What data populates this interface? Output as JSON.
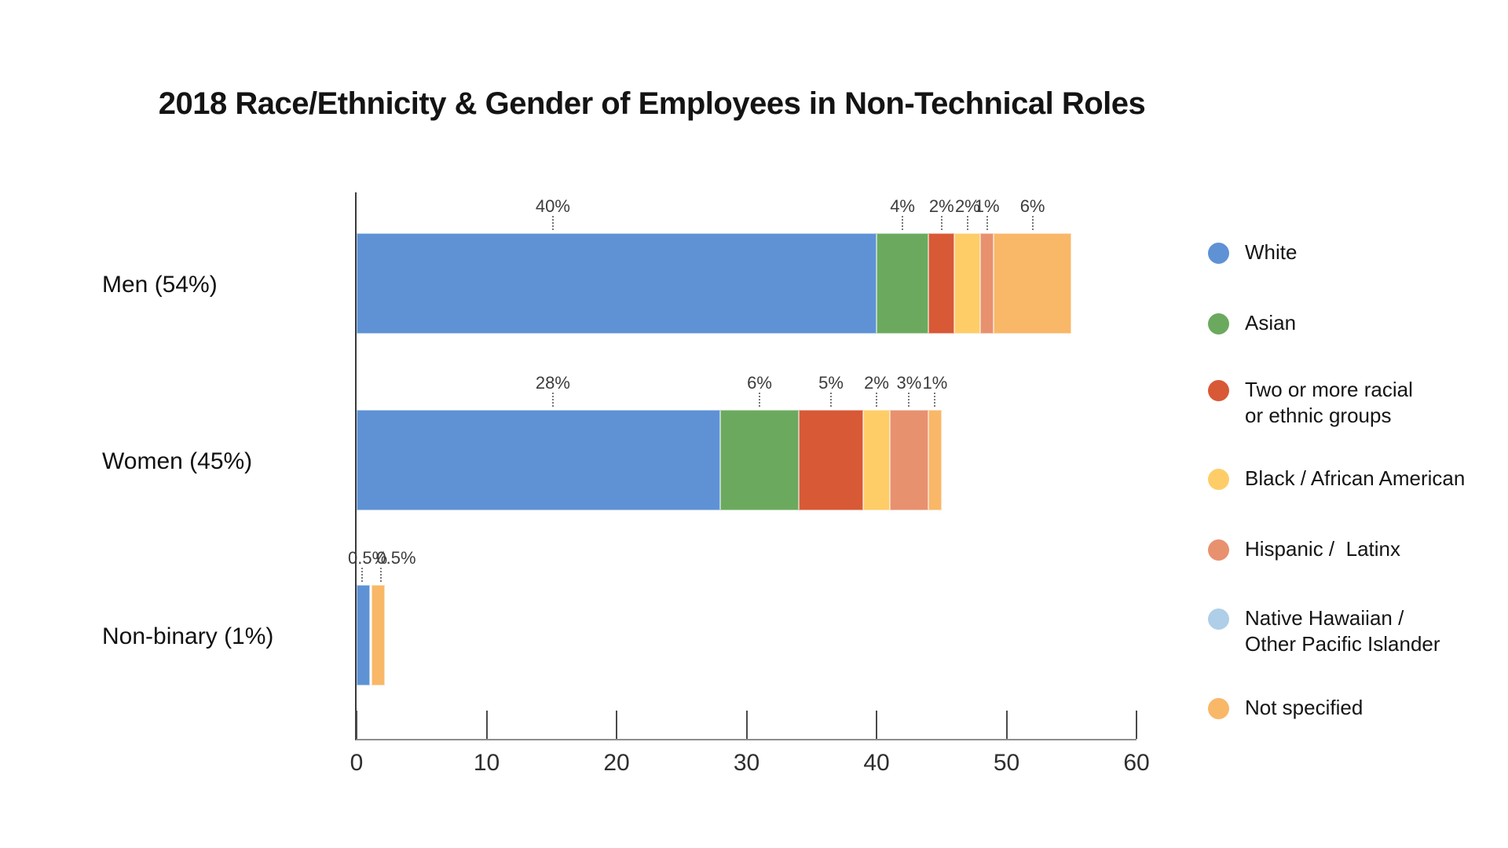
{
  "title": "2018 Race/Ethnicity & Gender of Employees in Non-Technical Roles",
  "colors": {
    "white": "#5E92D5",
    "asian": "#6BAA5E",
    "two_or_more": "#D85936",
    "black": "#FECD68",
    "hispanic": "#E8916F",
    "native_hawaiian": "#AFCEE8",
    "not_specified": "#F9B768",
    "axis_line": "#8d8d8d",
    "y_axis_line": "#3a3a3a"
  },
  "chart_data": {
    "type": "bar",
    "orientation": "horizontal",
    "stacked": true,
    "title": "2018 Race/Ethnicity & Gender of Employees in Non-Technical Roles",
    "xlabel": "",
    "ylabel": "",
    "xlim": [
      0,
      60
    ],
    "x_ticks": [
      "0",
      "10",
      "20",
      "30",
      "40",
      "50",
      "60"
    ],
    "x_tick_values": [
      0,
      10,
      20,
      30,
      40,
      50,
      60
    ],
    "grid": false,
    "legend_position": "right",
    "categories": [
      "Men (54%)",
      "Women (45%)",
      "Non-binary (1%)"
    ],
    "rows": [
      {
        "label": "Men (54%)",
        "segments": [
          {
            "group": "White",
            "color": "white",
            "value": 40,
            "label": "40%",
            "label_x": 15.1,
            "leader_x": 15.1
          },
          {
            "group": "Asian",
            "color": "asian",
            "value": 4,
            "label": "4%"
          },
          {
            "group": "Two or more racial or ethnic groups",
            "color": "two_or_more",
            "value": 2,
            "label": "2%"
          },
          {
            "group": "Black / African American",
            "color": "black",
            "value": 2,
            "label": "2%"
          },
          {
            "group": "Hispanic / Latinx",
            "color": "hispanic",
            "value": 1,
            "label": "1%"
          },
          {
            "group": "Not specified",
            "color": "not_specified",
            "value": 6,
            "label": "6%"
          }
        ]
      },
      {
        "label": "Women (45%)",
        "segments": [
          {
            "group": "White",
            "color": "white",
            "value": 28,
            "label": "28%",
            "label_x": 15.1,
            "leader_x": 15.1
          },
          {
            "group": "Asian",
            "color": "asian",
            "value": 6,
            "label": "6%"
          },
          {
            "group": "Two or more racial or ethnic groups",
            "color": "two_or_more",
            "value": 5,
            "label": "5%"
          },
          {
            "group": "Black / African American",
            "color": "black",
            "value": 2,
            "label": "2%"
          },
          {
            "group": "Hispanic / Latinx",
            "color": "hispanic",
            "value": 3,
            "label": "3%"
          },
          {
            "group": "Not specified",
            "color": "not_specified",
            "value": 1,
            "label": "1%"
          }
        ]
      },
      {
        "label": "Non-binary (1%)",
        "segments": [
          {
            "group": "White",
            "color": "white",
            "value": 0.5,
            "label": "0.5%",
            "draw_start": 0,
            "draw_width": 1.05,
            "label_x": 0.85,
            "leader_x": 0.45
          },
          {
            "group": "Not specified",
            "color": "not_specified",
            "value": 0.5,
            "label": "0.5%",
            "draw_start": 1.15,
            "draw_width": 1.0,
            "label_x": 3.05,
            "leader_x": 1.85
          }
        ]
      }
    ],
    "legend": [
      {
        "key": "white",
        "lines": [
          "White"
        ]
      },
      {
        "key": "asian",
        "lines": [
          "Asian"
        ]
      },
      {
        "key": "two_or_more",
        "lines": [
          "Two or more racial",
          "or ethnic groups"
        ]
      },
      {
        "key": "black",
        "lines": [
          "Black / African American"
        ]
      },
      {
        "key": "hispanic",
        "lines": [
          "Hispanic /  Latinx"
        ]
      },
      {
        "key": "native_hawaiian",
        "lines": [
          "Native Hawaiian /",
          "Other Pacific Islander"
        ]
      },
      {
        "key": "not_specified",
        "lines": [
          "Not specified"
        ]
      }
    ]
  }
}
